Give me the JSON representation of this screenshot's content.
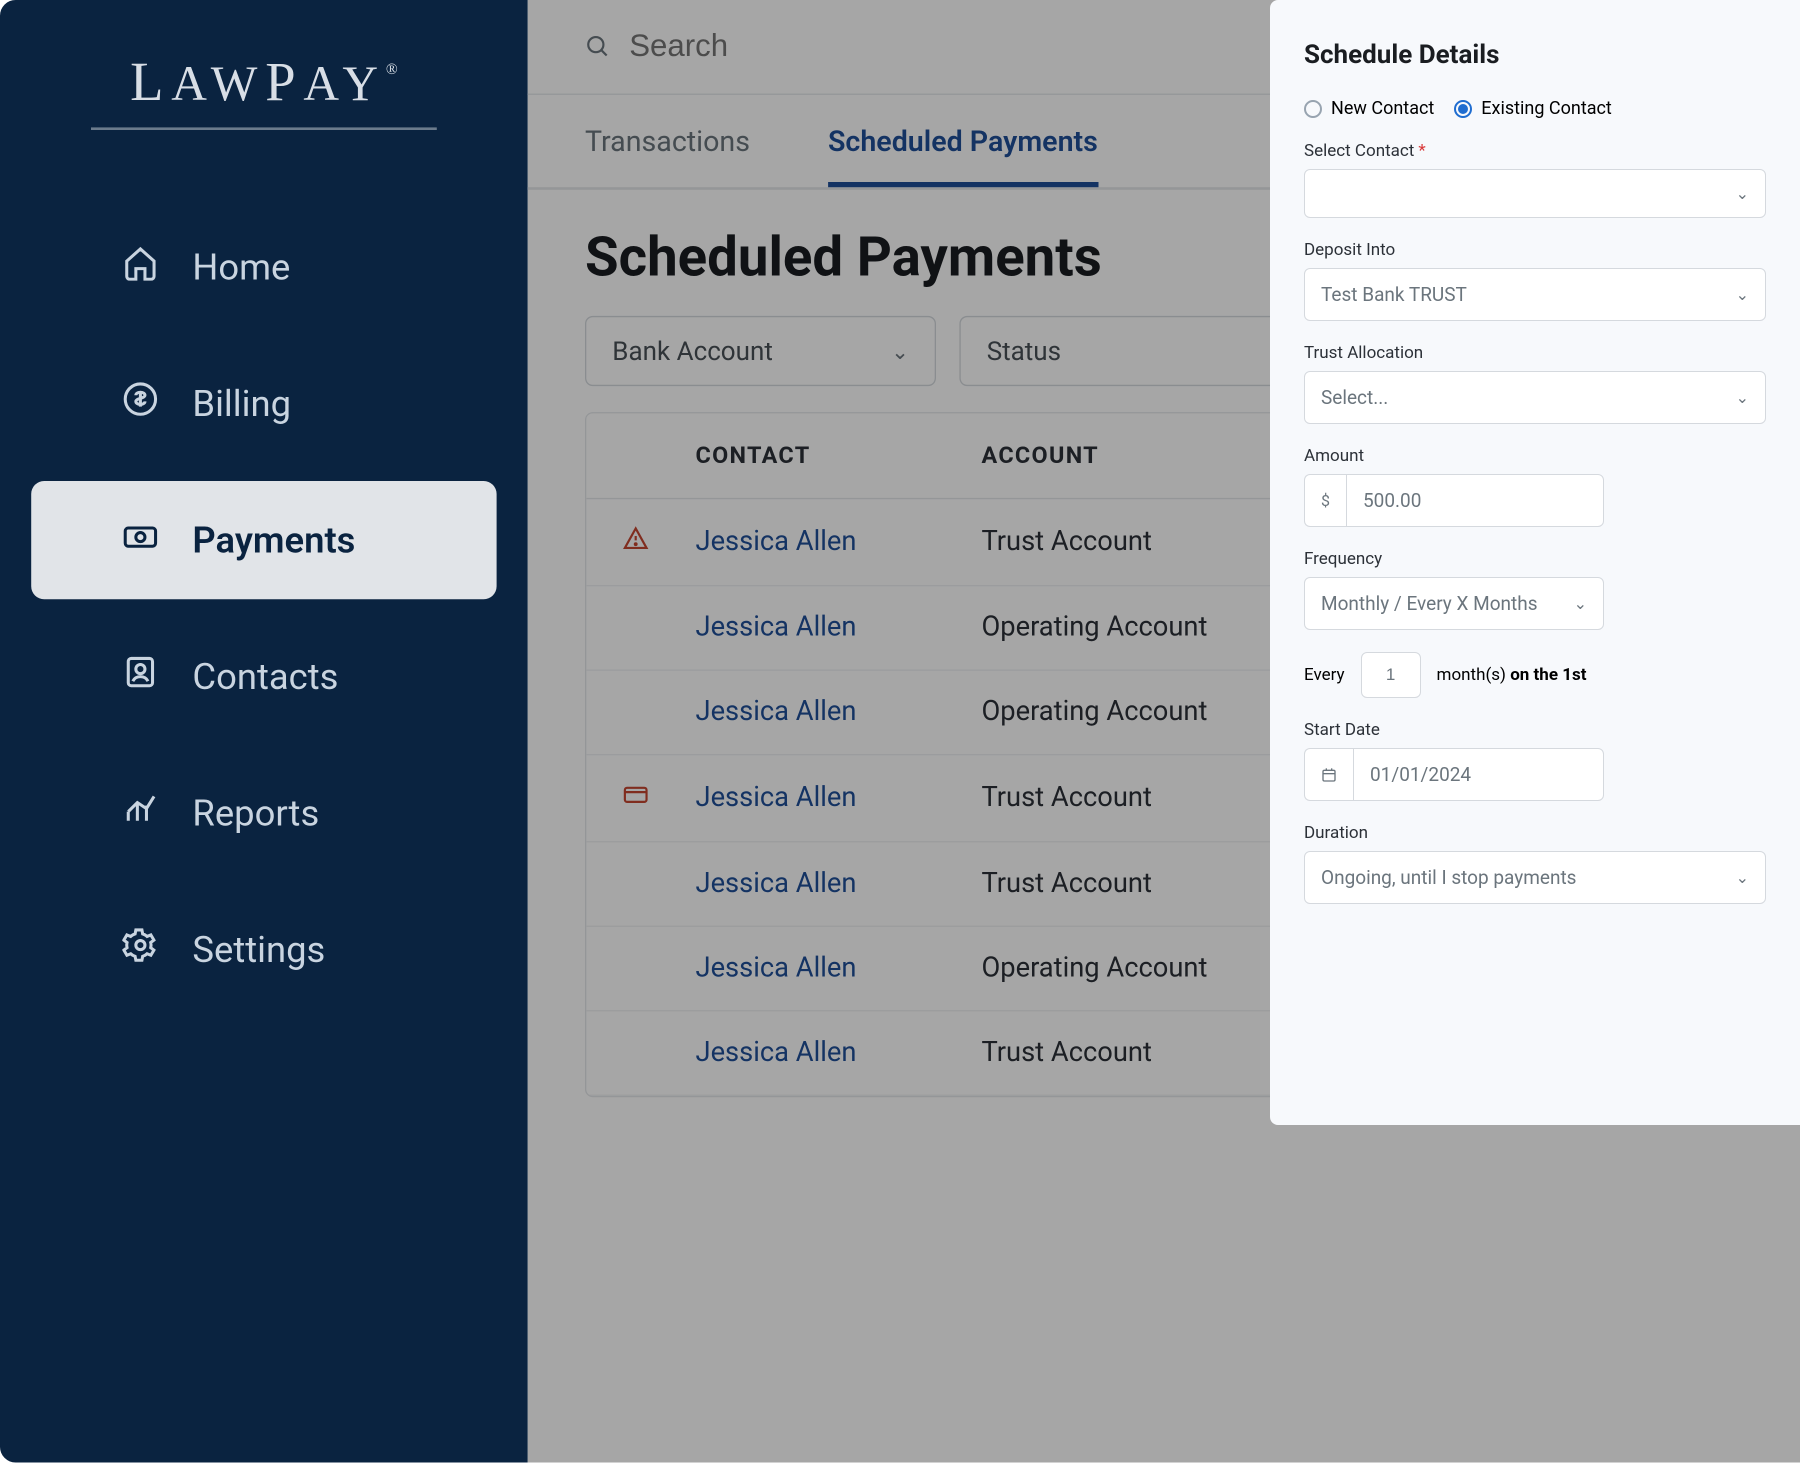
{
  "brand": "LAWPAY",
  "sidebar": {
    "items": [
      {
        "label": "Home",
        "icon": "home"
      },
      {
        "label": "Billing",
        "icon": "dollar"
      },
      {
        "label": "Payments",
        "icon": "cash",
        "active": true
      },
      {
        "label": "Contacts",
        "icon": "contacts"
      },
      {
        "label": "Reports",
        "icon": "reports"
      },
      {
        "label": "Settings",
        "icon": "gear"
      }
    ]
  },
  "search": {
    "placeholder": "Search"
  },
  "tabs": [
    {
      "label": "Transactions",
      "active": false
    },
    {
      "label": "Scheduled Payments",
      "active": true
    }
  ],
  "page_title": "Scheduled Payments",
  "filters": [
    {
      "label": "Bank Account"
    },
    {
      "label": "Status"
    }
  ],
  "table": {
    "columns": [
      "CONTACT",
      "ACCOUNT"
    ],
    "rows": [
      {
        "icon": "warning",
        "contact": "Jessica Allen",
        "account": "Trust Account"
      },
      {
        "icon": "",
        "contact": "Jessica Allen",
        "account": "Operating Account"
      },
      {
        "icon": "",
        "contact": "Jessica Allen",
        "account": "Operating Account"
      },
      {
        "icon": "card",
        "contact": "Jessica Allen",
        "account": "Trust Account"
      },
      {
        "icon": "",
        "contact": "Jessica Allen",
        "account": "Trust Account"
      },
      {
        "icon": "",
        "contact": "Jessica Allen",
        "account": "Operating Account"
      },
      {
        "icon": "",
        "contact": "Jessica Allen",
        "account": "Trust Account"
      }
    ]
  },
  "panel": {
    "title": "Schedule Details",
    "contact_type": {
      "new_label": "New Contact",
      "existing_label": "Existing Contact",
      "selected": "existing"
    },
    "select_contact": {
      "label": "Select Contact",
      "required": true,
      "value": ""
    },
    "deposit_into": {
      "label": "Deposit Into",
      "value": "Test Bank TRUST"
    },
    "trust_allocation": {
      "label": "Trust Allocation",
      "value": "Select..."
    },
    "amount": {
      "label": "Amount",
      "currency": "$",
      "value": "500.00"
    },
    "frequency": {
      "label": "Frequency",
      "value": "Monthly / Every X Months"
    },
    "every": {
      "prefix": "Every",
      "value": "1",
      "suffix": "month(s)",
      "bold": "on the 1st"
    },
    "start_date": {
      "label": "Start Date",
      "value": "01/01/2024"
    },
    "duration": {
      "label": "Duration",
      "value": "Ongoing, until I stop payments"
    }
  },
  "colors": {
    "sidebar_bg": "#0a2340",
    "accent": "#1f4f99",
    "link": "#1f4f99",
    "warning": "#c54530",
    "card_icon": "#c54530",
    "panel_bg": "#f7f9fc"
  }
}
